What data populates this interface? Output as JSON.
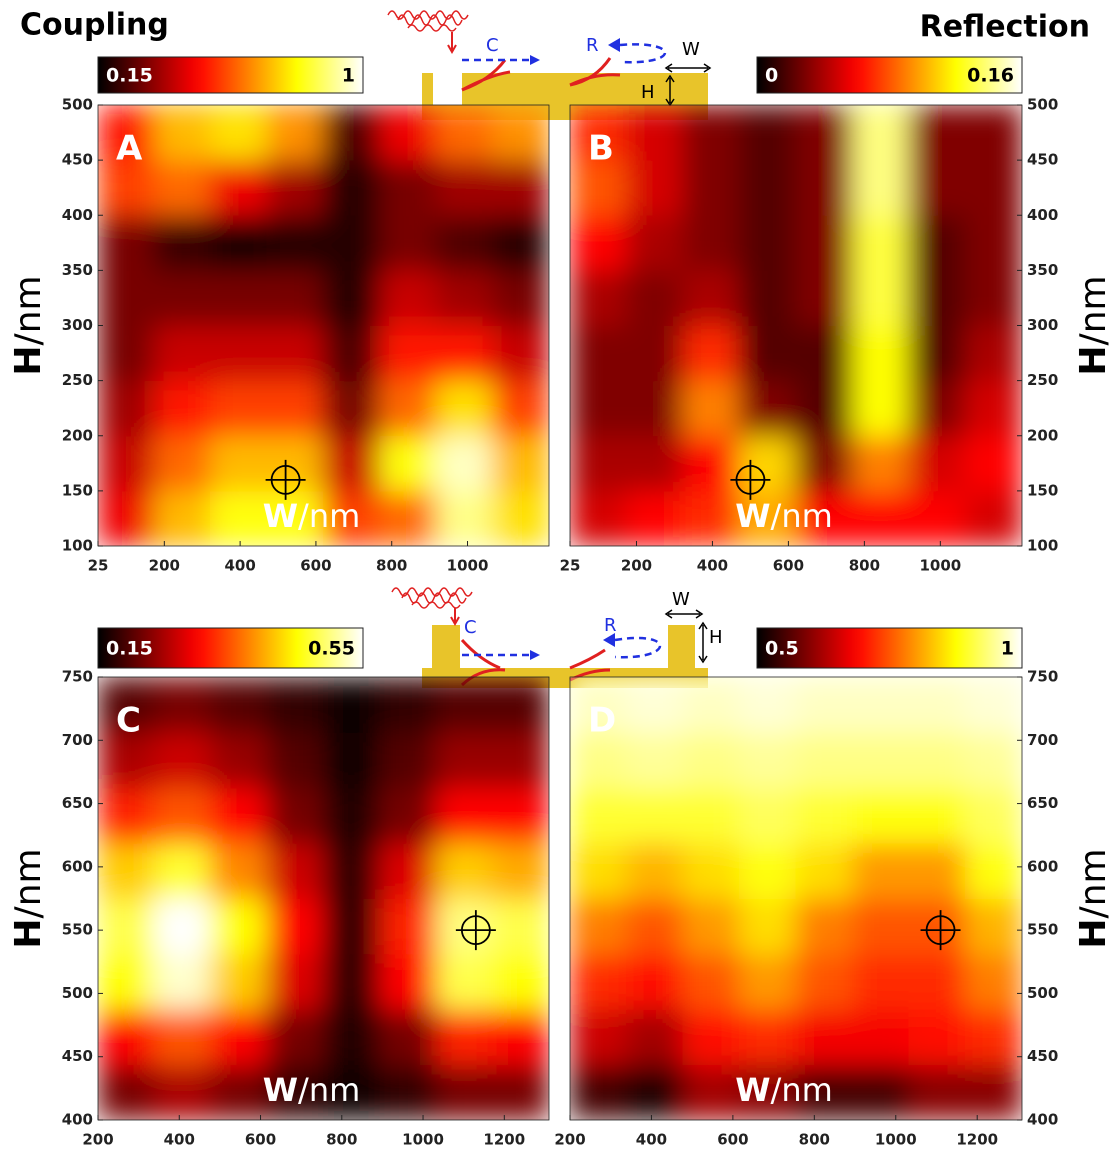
{
  "left_title": "Coupling",
  "right_title": "Reflection",
  "diagrams": [
    {
      "coupling": "C",
      "reflection": "R",
      "width": "W",
      "height": "H"
    },
    {
      "coupling": "C",
      "reflection": "R",
      "width": "W",
      "height": "H"
    }
  ],
  "chart_data": [
    {
      "type": "heatmap",
      "label": "A",
      "xlabel": "W",
      "xlabel_unit": "/nm",
      "ylabel": "H",
      "ylabel_unit": "/nm",
      "xlim": [
        25,
        1215
      ],
      "xticks": [
        25,
        200,
        400,
        600,
        800,
        1000
      ],
      "ylim": [
        100,
        500
      ],
      "yticks": [
        100,
        150,
        200,
        250,
        300,
        350,
        400,
        450,
        500
      ],
      "clim": [
        0.15,
        1
      ],
      "cticks": [
        0.15,
        1
      ],
      "colormap": "hot",
      "marker": [
        520,
        160
      ],
      "z": [
        [
          0.45,
          0.7,
          0.8,
          0.8,
          0.55,
          0.6,
          0.9,
          0.75
        ],
        [
          0.4,
          0.6,
          0.7,
          0.7,
          0.4,
          0.8,
          0.95,
          0.7
        ],
        [
          0.35,
          0.5,
          0.55,
          0.55,
          0.3,
          0.6,
          0.75,
          0.55
        ],
        [
          0.3,
          0.4,
          0.4,
          0.4,
          0.25,
          0.5,
          0.5,
          0.4
        ],
        [
          0.3,
          0.3,
          0.3,
          0.3,
          0.2,
          0.4,
          0.35,
          0.3
        ],
        [
          0.3,
          0.22,
          0.18,
          0.2,
          0.2,
          0.3,
          0.25,
          0.2
        ],
        [
          0.55,
          0.6,
          0.45,
          0.35,
          0.2,
          0.3,
          0.35,
          0.35
        ],
        [
          0.5,
          0.7,
          0.75,
          0.65,
          0.25,
          0.45,
          0.6,
          0.65
        ]
      ]
    },
    {
      "type": "heatmap",
      "label": "B",
      "xlabel": "W",
      "xlabel_unit": "/nm",
      "ylabel": "H",
      "ylabel_unit": "/nm",
      "xlim": [
        25,
        1215
      ],
      "xticks": [
        25,
        200,
        400,
        600,
        800,
        1000
      ],
      "ylim": [
        100,
        500
      ],
      "yticks": [
        100,
        150,
        200,
        250,
        300,
        350,
        400,
        450,
        500
      ],
      "clim": [
        0,
        0.16
      ],
      "cticks": [
        0,
        0.16
      ],
      "colormap": "hot",
      "marker": [
        500,
        160
      ],
      "z": [
        [
          0.05,
          0.06,
          0.07,
          0.1,
          0.06,
          0.06,
          0.06,
          0.05
        ],
        [
          0.04,
          0.04,
          0.06,
          0.11,
          0.03,
          0.09,
          0.05,
          0.06
        ],
        [
          0.03,
          0.03,
          0.09,
          0.03,
          0.02,
          0.12,
          0.03,
          0.05
        ],
        [
          0.03,
          0.03,
          0.07,
          0.02,
          0.02,
          0.12,
          0.02,
          0.04
        ],
        [
          0.04,
          0.03,
          0.04,
          0.02,
          0.03,
          0.13,
          0.02,
          0.03
        ],
        [
          0.06,
          0.04,
          0.03,
          0.02,
          0.03,
          0.13,
          0.02,
          0.03
        ],
        [
          0.08,
          0.05,
          0.03,
          0.02,
          0.03,
          0.14,
          0.03,
          0.03
        ],
        [
          0.07,
          0.05,
          0.03,
          0.02,
          0.03,
          0.14,
          0.03,
          0.03
        ]
      ]
    },
    {
      "type": "heatmap",
      "label": "C",
      "xlabel": "W",
      "xlabel_unit": "/nm",
      "ylabel": "H",
      "ylabel_unit": "/nm",
      "xlim": [
        200,
        1310
      ],
      "xticks": [
        200,
        400,
        600,
        800,
        1000,
        1200
      ],
      "ylim": [
        400,
        750
      ],
      "yticks": [
        400,
        450,
        500,
        550,
        600,
        650,
        700,
        750
      ],
      "clim": [
        0.15,
        0.55
      ],
      "cticks": [
        0.15,
        0.55
      ],
      "colormap": "hot",
      "marker": [
        1130,
        550
      ],
      "z": [
        [
          0.22,
          0.25,
          0.22,
          0.18,
          0.16,
          0.18,
          0.22,
          0.22
        ],
        [
          0.3,
          0.35,
          0.3,
          0.22,
          0.17,
          0.22,
          0.32,
          0.3
        ],
        [
          0.45,
          0.53,
          0.42,
          0.28,
          0.18,
          0.3,
          0.48,
          0.45
        ],
        [
          0.48,
          0.55,
          0.45,
          0.3,
          0.18,
          0.32,
          0.5,
          0.48
        ],
        [
          0.42,
          0.47,
          0.38,
          0.27,
          0.18,
          0.28,
          0.42,
          0.4
        ],
        [
          0.32,
          0.35,
          0.3,
          0.22,
          0.17,
          0.22,
          0.3,
          0.3
        ],
        [
          0.25,
          0.27,
          0.24,
          0.2,
          0.16,
          0.2,
          0.24,
          0.24
        ],
        [
          0.2,
          0.22,
          0.2,
          0.18,
          0.16,
          0.18,
          0.2,
          0.2
        ]
      ]
    },
    {
      "type": "heatmap",
      "label": "D",
      "xlabel": "W",
      "xlabel_unit": "/nm",
      "ylabel": "H",
      "ylabel_unit": "/nm",
      "xlim": [
        200,
        1310
      ],
      "xticks": [
        200,
        400,
        600,
        800,
        1000,
        1200
      ],
      "ylim": [
        400,
        750
      ],
      "yticks": [
        400,
        450,
        500,
        550,
        600,
        650,
        700,
        750
      ],
      "clim": [
        0.5,
        1
      ],
      "cticks": [
        0.5,
        1
      ],
      "colormap": "hot",
      "marker": [
        1110,
        550
      ],
      "z": [
        [
          0.55,
          0.52,
          0.62,
          0.6,
          0.55,
          0.55,
          0.6,
          0.6
        ],
        [
          0.65,
          0.62,
          0.7,
          0.72,
          0.68,
          0.68,
          0.7,
          0.72
        ],
        [
          0.72,
          0.7,
          0.75,
          0.8,
          0.75,
          0.72,
          0.72,
          0.78
        ],
        [
          0.78,
          0.75,
          0.8,
          0.85,
          0.78,
          0.75,
          0.75,
          0.82
        ],
        [
          0.85,
          0.82,
          0.85,
          0.88,
          0.85,
          0.8,
          0.8,
          0.88
        ],
        [
          0.9,
          0.9,
          0.9,
          0.92,
          0.9,
          0.88,
          0.88,
          0.92
        ],
        [
          0.94,
          0.95,
          0.94,
          0.95,
          0.94,
          0.94,
          0.94,
          0.95
        ],
        [
          0.97,
          0.98,
          0.97,
          0.98,
          0.97,
          0.97,
          0.97,
          0.98
        ]
      ]
    }
  ]
}
